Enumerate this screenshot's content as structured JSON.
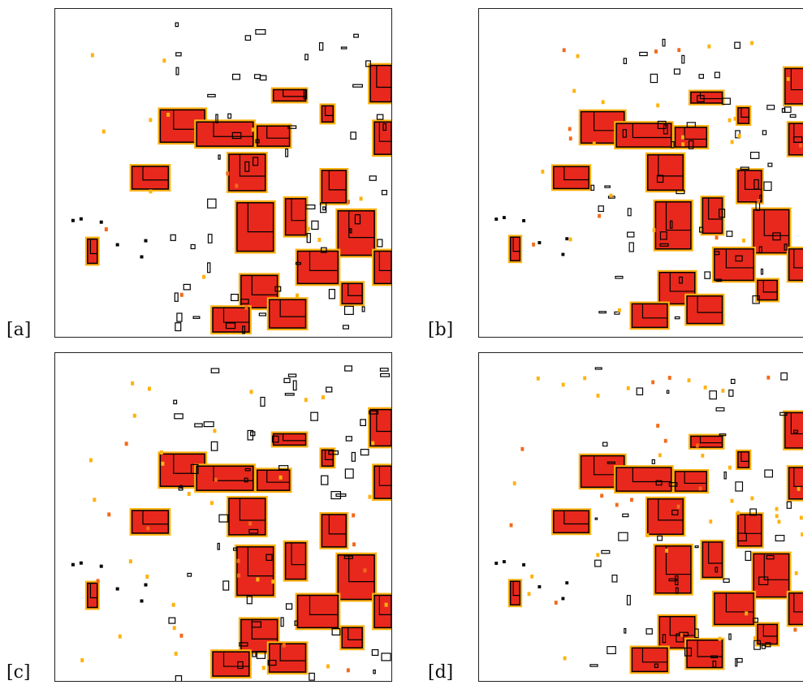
{
  "panels": [
    {
      "id": "a",
      "label": "[a]"
    },
    {
      "id": "b",
      "label": "[b]"
    },
    {
      "id": "c",
      "label": "[c]"
    },
    {
      "id": "d",
      "label": "[d]"
    }
  ],
  "colors": {
    "background": "#ffffff",
    "fill_high": "#e8281c",
    "fill_mid": "#f26a1b",
    "fill_low": "#ffb20f",
    "outline": "#000000",
    "frame": "#222222"
  }
}
